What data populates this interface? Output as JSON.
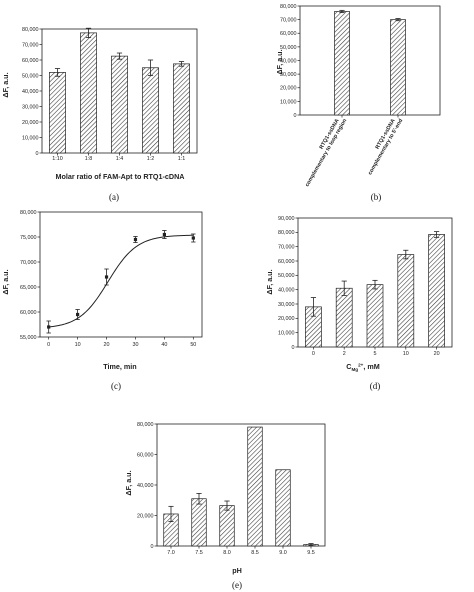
{
  "chart_data": [
    {
      "panel": "(a)",
      "type": "bar",
      "categories": [
        "1:10",
        "1:8",
        "1:4",
        "1:2",
        "1:1"
      ],
      "values": [
        52000,
        77500,
        62500,
        55000,
        57500
      ],
      "errors": [
        2500,
        3000,
        2000,
        5000,
        1500
      ],
      "xlabel": "Molar ratio of FAM-Apt to RTQ1-cDNA",
      "ylabel": "ΔF, a.u.",
      "ylim": [
        0,
        80000
      ],
      "yticks": [
        0,
        10000,
        20000,
        30000,
        40000,
        50000,
        60000,
        70000,
        80000
      ],
      "ytick_labels": [
        "0",
        "10,000",
        "20,000",
        "30,000",
        "40,000",
        "50,000",
        "60,000",
        "70,000",
        "80,000"
      ],
      "bar_style": "hatched"
    },
    {
      "panel": "(b)",
      "type": "bar",
      "categories": [
        "RTQ1-ssDNA complementary to loop region",
        "RTQ1-ssDNA complementary to 5'-end"
      ],
      "category_lines": [
        [
          "RTQ1-ssDNA",
          "complementary to loop region"
        ],
        [
          "RTQ1-ssDNA",
          "complementary to 5'-end"
        ]
      ],
      "values": [
        76000,
        70000
      ],
      "errors": [
        800,
        800
      ],
      "xlabel": "",
      "ylabel": "ΔF, a.u.",
      "ylim": [
        0,
        80000
      ],
      "yticks": [
        0,
        10000,
        20000,
        30000,
        40000,
        50000,
        60000,
        70000,
        80000
      ],
      "ytick_labels": [
        "0",
        "10,000",
        "20,000",
        "30,000",
        "40,000",
        "50,000",
        "60,000",
        "70,000",
        "80,000"
      ],
      "bar_style": "hatched"
    },
    {
      "panel": "(c)",
      "type": "line",
      "x": [
        0,
        10,
        20,
        30,
        40,
        50
      ],
      "y": [
        57000,
        59500,
        67000,
        74500,
        75500,
        74800
      ],
      "errors": [
        1200,
        1000,
        1600,
        600,
        800,
        800
      ],
      "fit_curve": "sigmoidal",
      "xlabel": "Time, min",
      "ylabel": "ΔF, a.u.",
      "xlim": [
        -3,
        53
      ],
      "ylim": [
        55000,
        80000
      ],
      "xticks": [
        0,
        10,
        20,
        30,
        40,
        50
      ],
      "xtick_labels": [
        "0",
        "10",
        "20",
        "30",
        "40",
        "50"
      ],
      "yticks": [
        55000,
        60000,
        65000,
        70000,
        75000,
        80000
      ],
      "ytick_labels": [
        "55,000",
        "60,000",
        "65,000",
        "70,000",
        "75,000",
        "80,000"
      ]
    },
    {
      "panel": "(d)",
      "type": "bar",
      "categories": [
        "0",
        "2",
        "5",
        "10",
        "20"
      ],
      "values": [
        28000,
        41000,
        43500,
        64500,
        78500
      ],
      "errors": [
        6500,
        5000,
        3000,
        3000,
        2000
      ],
      "xlabel_prefix": "C",
      "xlabel_sub": "Mg",
      "xlabel_sup": "2+",
      "xlabel_suffix": ", mM",
      "ylabel": "ΔF, a.u.",
      "ylim": [
        0,
        90000
      ],
      "yticks": [
        0,
        10000,
        20000,
        30000,
        40000,
        50000,
        60000,
        70000,
        80000,
        90000
      ],
      "ytick_labels": [
        "0",
        "10,000",
        "20,000",
        "30,000",
        "40,000",
        "50,000",
        "60,000",
        "70,000",
        "80,000",
        "90,000"
      ],
      "bar_style": "hatched"
    },
    {
      "panel": "(e)",
      "type": "bar",
      "categories": [
        "7.0",
        "7.5",
        "8.0",
        "8.5",
        "9.0",
        "9.5"
      ],
      "values": [
        21000,
        31000,
        26500,
        78000,
        50000,
        1000
      ],
      "errors": [
        5000,
        3500,
        3000,
        0,
        0,
        600
      ],
      "xlabel": "pH",
      "ylabel": "ΔF, a.u.",
      "ylim": [
        0,
        80000
      ],
      "yticks": [
        0,
        20000,
        40000,
        60000,
        80000
      ],
      "ytick_labels": [
        "0",
        "20,000",
        "40,000",
        "60,000",
        "80,000"
      ],
      "bar_style": "hatched"
    }
  ]
}
